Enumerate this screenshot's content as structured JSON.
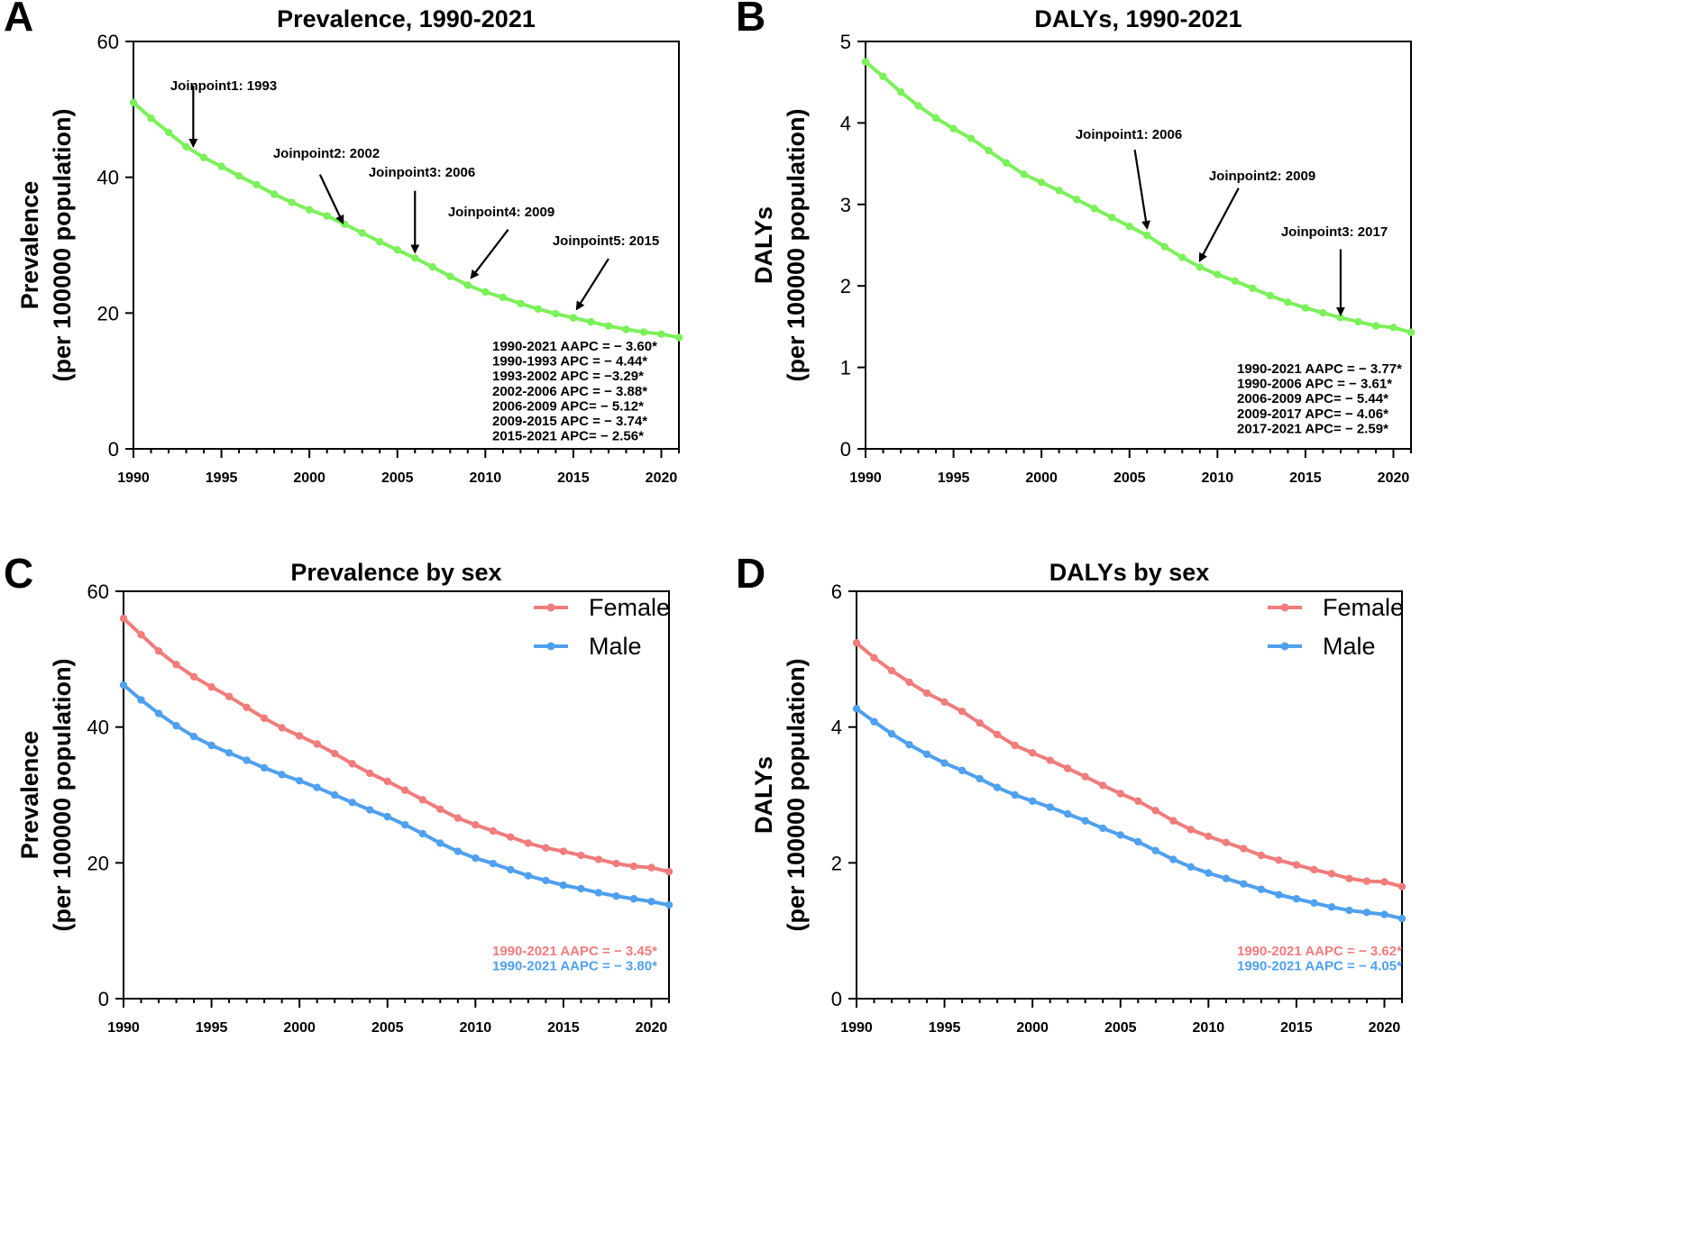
{
  "chart_data": [
    {
      "panel": "A",
      "type": "line",
      "title": "Prevalence, 1990-2021",
      "ylabel_lines": [
        "Prevalence",
        "(per 100000 population)"
      ],
      "xlabel": "",
      "xlim": [
        1990,
        2021
      ],
      "ylim": [
        0,
        60
      ],
      "yticks": [
        0,
        20,
        40,
        60
      ],
      "xticks": [
        1990,
        1995,
        2000,
        2005,
        2010,
        2015,
        2020
      ],
      "series": [
        {
          "name": "Prevalence",
          "color": "#7CF05A",
          "x": [
            1990,
            1991,
            1992,
            1993,
            1994,
            1995,
            1996,
            1997,
            1998,
            1999,
            2000,
            2001,
            2002,
            2003,
            2004,
            2005,
            2006,
            2007,
            2008,
            2009,
            2010,
            2011,
            2012,
            2013,
            2014,
            2015,
            2016,
            2017,
            2018,
            2019,
            2020,
            2021
          ],
          "values": [
            51.0,
            48.7,
            46.6,
            44.5,
            42.9,
            41.6,
            40.2,
            38.9,
            37.5,
            36.3,
            35.2,
            34.3,
            33.1,
            31.8,
            30.5,
            29.3,
            28.1,
            26.8,
            25.4,
            24.1,
            23.1,
            22.3,
            21.4,
            20.6,
            19.9,
            19.3,
            18.7,
            18.1,
            17.6,
            17.2,
            16.9,
            16.4
          ]
        }
      ],
      "annotations": [
        {
          "text": "Joinpoint1: 1993",
          "year": 1993
        },
        {
          "text": "Joinpoint2: 2002",
          "year": 2002
        },
        {
          "text": "Joinpoint3: 2006",
          "year": 2006
        },
        {
          "text": "Joinpoint4: 2009",
          "year": 2009
        },
        {
          "text": "Joinpoint5: 2015",
          "year": 2015
        }
      ],
      "stats": [
        {
          "text": "1990-2021 AAPC = − 3.60*",
          "color": "#000000"
        },
        {
          "text": "1990-1993 APC = − 4.44*",
          "color": "#000000"
        },
        {
          "text": "1993-2002 APC = −3.29*",
          "color": "#000000"
        },
        {
          "text": "2002-2006 APC = − 3.88*",
          "color": "#000000"
        },
        {
          "text": "2006-2009 APC= − 5.12*",
          "color": "#000000"
        },
        {
          "text": "2009-2015 APC =  − 3.74*",
          "color": "#000000"
        },
        {
          "text": "2015-2021 APC= − 2.56*",
          "color": "#000000"
        }
      ]
    },
    {
      "panel": "B",
      "type": "line",
      "title": "DALYs, 1990-2021",
      "ylabel_lines": [
        "DALYs",
        "(per 100000 population)"
      ],
      "xlabel": "",
      "xlim": [
        1990,
        2021
      ],
      "ylim": [
        0,
        5
      ],
      "yticks": [
        0,
        1,
        2,
        3,
        4,
        5
      ],
      "xticks": [
        1990,
        1995,
        2000,
        2005,
        2010,
        2015,
        2020
      ],
      "series": [
        {
          "name": "DALYs",
          "color": "#7CF05A",
          "x": [
            1990,
            1991,
            1992,
            1993,
            1994,
            1995,
            1996,
            1997,
            1998,
            1999,
            2000,
            2001,
            2002,
            2003,
            2004,
            2005,
            2006,
            2007,
            2008,
            2009,
            2010,
            2011,
            2012,
            2013,
            2014,
            2015,
            2016,
            2017,
            2018,
            2019,
            2020,
            2021
          ],
          "values": [
            4.75,
            4.57,
            4.38,
            4.21,
            4.06,
            3.93,
            3.81,
            3.66,
            3.51,
            3.37,
            3.27,
            3.17,
            3.06,
            2.95,
            2.84,
            2.73,
            2.62,
            2.48,
            2.35,
            2.23,
            2.14,
            2.06,
            1.97,
            1.88,
            1.8,
            1.73,
            1.67,
            1.61,
            1.56,
            1.51,
            1.49,
            1.43
          ]
        }
      ],
      "annotations": [
        {
          "text": "Joinpoint1: 2006",
          "year": 2006
        },
        {
          "text": "Joinpoint2: 2009",
          "year": 2009
        },
        {
          "text": "Joinpoint3: 2017",
          "year": 2017
        }
      ],
      "stats": [
        {
          "text": "1990-2021 AAPC = − 3.77*",
          "color": "#000000"
        },
        {
          "text": "1990-2006 APC = − 3.61*",
          "color": "#000000"
        },
        {
          "text": "2006-2009 APC= − 5.44*",
          "color": "#000000"
        },
        {
          "text": "2009-2017 APC= − 4.06*",
          "color": "#000000"
        },
        {
          "text": "2017-2021 APC= − 2.59*",
          "color": "#000000"
        }
      ]
    },
    {
      "panel": "C",
      "type": "line",
      "title": "Prevalence by sex",
      "ylabel_lines": [
        "Prevalence",
        "(per 100000 population)"
      ],
      "xlabel": "",
      "xlim": [
        1990,
        2021
      ],
      "ylim": [
        0,
        60
      ],
      "yticks": [
        0,
        20,
        40,
        60
      ],
      "xticks": [
        1990,
        1995,
        2000,
        2005,
        2010,
        2015,
        2020
      ],
      "legend_position": "top-right",
      "series": [
        {
          "name": "Female",
          "color": "#F07C7C",
          "x": [
            1990,
            1991,
            1992,
            1993,
            1994,
            1995,
            1996,
            1997,
            1998,
            1999,
            2000,
            2001,
            2002,
            2003,
            2004,
            2005,
            2006,
            2007,
            2008,
            2009,
            2010,
            2011,
            2012,
            2013,
            2014,
            2015,
            2016,
            2017,
            2018,
            2019,
            2020,
            2021
          ],
          "values": [
            56.0,
            53.6,
            51.2,
            49.2,
            47.4,
            45.9,
            44.5,
            42.9,
            41.3,
            39.9,
            38.7,
            37.5,
            36.1,
            34.6,
            33.2,
            32.0,
            30.7,
            29.3,
            27.9,
            26.6,
            25.6,
            24.7,
            23.8,
            22.9,
            22.2,
            21.7,
            21.1,
            20.5,
            19.9,
            19.5,
            19.3,
            18.7
          ]
        },
        {
          "name": "Male",
          "color": "#4FA0EE",
          "x": [
            1990,
            1991,
            1992,
            1993,
            1994,
            1995,
            1996,
            1997,
            1998,
            1999,
            2000,
            2001,
            2002,
            2003,
            2004,
            2005,
            2006,
            2007,
            2008,
            2009,
            2010,
            2011,
            2012,
            2013,
            2014,
            2015,
            2016,
            2017,
            2018,
            2019,
            2020,
            2021
          ],
          "values": [
            46.2,
            44.0,
            42.0,
            40.2,
            38.6,
            37.3,
            36.2,
            35.1,
            34.0,
            33.0,
            32.1,
            31.1,
            30.0,
            28.9,
            27.8,
            26.8,
            25.6,
            24.3,
            22.9,
            21.7,
            20.7,
            19.9,
            19.0,
            18.1,
            17.4,
            16.7,
            16.2,
            15.6,
            15.1,
            14.7,
            14.3,
            13.8
          ]
        }
      ],
      "stats": [
        {
          "text": "1990-2021 AAPC = − 3.45*",
          "color": "#F07C7C"
        },
        {
          "text": "1990-2021 AAPC = − 3.80*",
          "color": "#4FA0EE"
        }
      ]
    },
    {
      "panel": "D",
      "type": "line",
      "title": "DALYs by sex",
      "ylabel_lines": [
        "DALYs",
        "(per 100000 population)"
      ],
      "xlabel": "",
      "xlim": [
        1990,
        2021
      ],
      "ylim": [
        0,
        6
      ],
      "yticks": [
        0,
        2,
        4,
        6
      ],
      "xticks": [
        1990,
        1995,
        2000,
        2005,
        2010,
        2015,
        2020
      ],
      "legend_position": "top-right",
      "series": [
        {
          "name": "Female",
          "color": "#F07C7C",
          "x": [
            1990,
            1991,
            1992,
            1993,
            1994,
            1995,
            1996,
            1997,
            1998,
            1999,
            2000,
            2001,
            2002,
            2003,
            2004,
            2005,
            2006,
            2007,
            2008,
            2009,
            2010,
            2011,
            2012,
            2013,
            2014,
            2015,
            2016,
            2017,
            2018,
            2019,
            2020,
            2021
          ],
          "values": [
            5.24,
            5.02,
            4.83,
            4.66,
            4.5,
            4.37,
            4.23,
            4.06,
            3.89,
            3.73,
            3.62,
            3.51,
            3.39,
            3.27,
            3.14,
            3.02,
            2.91,
            2.77,
            2.62,
            2.49,
            2.39,
            2.3,
            2.21,
            2.11,
            2.04,
            1.97,
            1.9,
            1.84,
            1.77,
            1.73,
            1.72,
            1.65
          ]
        },
        {
          "name": "Male",
          "color": "#4FA0EE",
          "x": [
            1990,
            1991,
            1992,
            1993,
            1994,
            1995,
            1996,
            1997,
            1998,
            1999,
            2000,
            2001,
            2002,
            2003,
            2004,
            2005,
            2006,
            2007,
            2008,
            2009,
            2010,
            2011,
            2012,
            2013,
            2014,
            2015,
            2016,
            2017,
            2018,
            2019,
            2020,
            2021
          ],
          "values": [
            4.27,
            4.08,
            3.9,
            3.74,
            3.6,
            3.47,
            3.36,
            3.24,
            3.11,
            3.0,
            2.91,
            2.82,
            2.72,
            2.62,
            2.51,
            2.41,
            2.31,
            2.18,
            2.05,
            1.94,
            1.85,
            1.77,
            1.69,
            1.61,
            1.53,
            1.47,
            1.41,
            1.35,
            1.3,
            1.27,
            1.24,
            1.18
          ]
        }
      ],
      "stats": [
        {
          "text": "1990-2021 AAPC = − 3.62*",
          "color": "#F07C7C"
        },
        {
          "text": "1990-2021 AAPC = − 4.05*",
          "color": "#4FA0EE"
        }
      ]
    }
  ]
}
